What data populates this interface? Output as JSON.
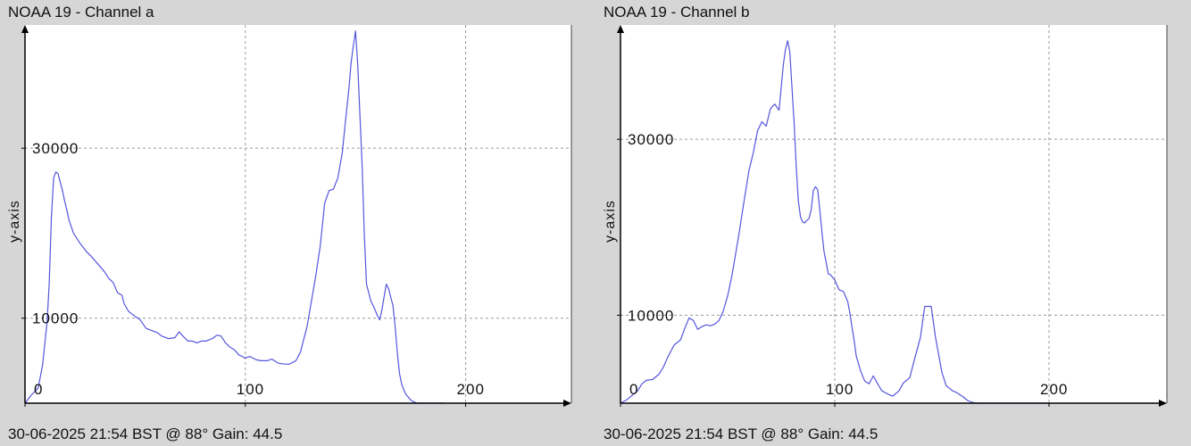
{
  "chart_data": [
    {
      "type": "line",
      "title": "NOAA 19 - Channel a",
      "footer": "30-06-2025 21:54 BST @ 88° Gain: 44.5",
      "ylabel": "y-axis",
      "xlabel": "",
      "xlim": [
        0,
        248
      ],
      "ylim": [
        0,
        44500
      ],
      "xticks": [
        0,
        100,
        200
      ],
      "yticks": [
        10000,
        30000
      ],
      "grid": true,
      "colors": {
        "line": "#5555dd",
        "grid": "#9a9a9a",
        "background": "#ffffff"
      },
      "x": [
        0,
        3,
        6,
        8,
        10,
        11,
        12,
        13,
        14,
        15,
        16,
        17,
        18,
        19,
        20,
        22,
        25,
        28,
        30,
        33,
        36,
        38,
        40,
        42,
        44,
        45,
        47,
        50,
        52,
        55,
        57,
        60,
        62,
        65,
        68,
        70,
        72,
        74,
        76,
        78,
        80,
        82,
        85,
        87,
        89,
        91,
        93,
        95,
        97,
        100,
        102,
        105,
        107,
        110,
        112,
        115,
        118,
        120,
        123,
        125,
        128,
        130,
        132,
        134,
        136,
        138,
        140,
        142,
        144,
        145,
        146,
        147,
        148,
        149,
        150,
        151,
        152,
        153,
        154,
        155,
        156,
        157,
        158,
        159,
        160,
        161,
        162,
        163,
        164,
        165,
        166,
        167,
        168,
        169,
        170,
        171,
        172,
        173,
        174,
        175,
        176,
        177,
        178,
        180,
        182,
        184,
        186,
        188,
        190
      ],
      "y": [
        0,
        1000,
        1800,
        4500,
        9500,
        14000,
        22000,
        26500,
        27200,
        27000,
        26000,
        25000,
        23800,
        22700,
        21500,
        20000,
        18800,
        17800,
        17300,
        16400,
        15500,
        14700,
        14200,
        13000,
        12700,
        11700,
        10800,
        10200,
        9900,
        8800,
        8600,
        8300,
        7900,
        7600,
        7700,
        8400,
        7800,
        7300,
        7300,
        7100,
        7300,
        7300,
        7600,
        8000,
        7900,
        7100,
        6600,
        6300,
        5700,
        5300,
        5500,
        5100,
        5000,
        5000,
        5200,
        4700,
        4600,
        4600,
        5000,
        6000,
        9000,
        12000,
        15000,
        18500,
        23500,
        25000,
        25200,
        26500,
        29500,
        32000,
        34500,
        37000,
        40000,
        42000,
        43800,
        40000,
        34000,
        28000,
        20000,
        14000,
        13000,
        12000,
        11500,
        10900,
        10300,
        9800,
        11000,
        12500,
        14000,
        13500,
        12500,
        11500,
        9000,
        6000,
        3500,
        2200,
        1500,
        1000,
        700,
        400,
        200,
        100,
        0,
        0,
        0,
        0,
        0,
        0,
        0
      ]
    },
    {
      "type": "line",
      "title": "NOAA 19 - Channel b",
      "footer": "30-06-2025 21:54 BST @ 88° Gain: 44.5",
      "ylabel": "y-axis",
      "xlabel": "",
      "xlim": [
        0,
        255
      ],
      "ylim": [
        0,
        43000
      ],
      "xticks": [
        0,
        100,
        200
      ],
      "yticks": [
        10000,
        30000
      ],
      "grid": true,
      "colors": {
        "line": "#5555dd",
        "grid": "#9a9a9a",
        "background": "#ffffff"
      },
      "x": [
        0,
        3,
        6,
        8,
        10,
        12,
        15,
        18,
        20,
        22,
        25,
        28,
        30,
        32,
        34,
        36,
        38,
        40,
        42,
        44,
        46,
        48,
        50,
        52,
        55,
        58,
        60,
        62,
        64,
        66,
        68,
        70,
        72,
        74,
        76,
        77,
        78,
        79,
        80,
        81,
        82,
        83,
        84,
        85,
        86,
        87,
        88,
        89,
        90,
        91,
        92,
        93,
        94,
        95,
        96,
        97,
        98,
        99,
        100,
        102,
        104,
        106,
        107,
        108,
        109,
        110,
        112,
        114,
        116,
        118,
        120,
        122,
        125,
        127,
        130,
        132,
        135,
        137,
        140,
        142,
        145,
        147,
        150,
        152,
        155,
        157,
        160,
        162,
        164,
        166,
        168,
        169,
        170,
        171,
        172,
        173,
        174,
        175,
        176,
        178,
        180,
        182,
        185,
        188,
        190,
        193,
        195,
        200
      ],
      "y": [
        0,
        400,
        1000,
        1400,
        2200,
        2600,
        2700,
        3300,
        4100,
        5200,
        6600,
        7200,
        8500,
        9700,
        9400,
        8400,
        8700,
        8900,
        8800,
        9000,
        9400,
        10500,
        12200,
        14500,
        18800,
        23500,
        26500,
        28500,
        31000,
        32000,
        31500,
        33500,
        34000,
        33300,
        38500,
        40200,
        41200,
        40000,
        36000,
        32000,
        27000,
        23000,
        21200,
        20600,
        20500,
        20800,
        21000,
        22000,
        24200,
        24600,
        24300,
        22000,
        19500,
        17200,
        16000,
        14700,
        14600,
        14300,
        14000,
        12900,
        12700,
        11600,
        10300,
        8700,
        7200,
        5400,
        3700,
        2500,
        2200,
        3100,
        2200,
        1400,
        1000,
        800,
        1400,
        2300,
        2900,
        4800,
        7500,
        11000,
        11000,
        7500,
        3500,
        2000,
        1400,
        1200,
        700,
        300,
        100,
        0,
        0,
        0,
        0,
        0,
        0,
        0,
        0,
        0,
        0,
        0,
        0,
        0,
        0,
        0,
        0,
        0,
        0,
        0
      ]
    }
  ]
}
